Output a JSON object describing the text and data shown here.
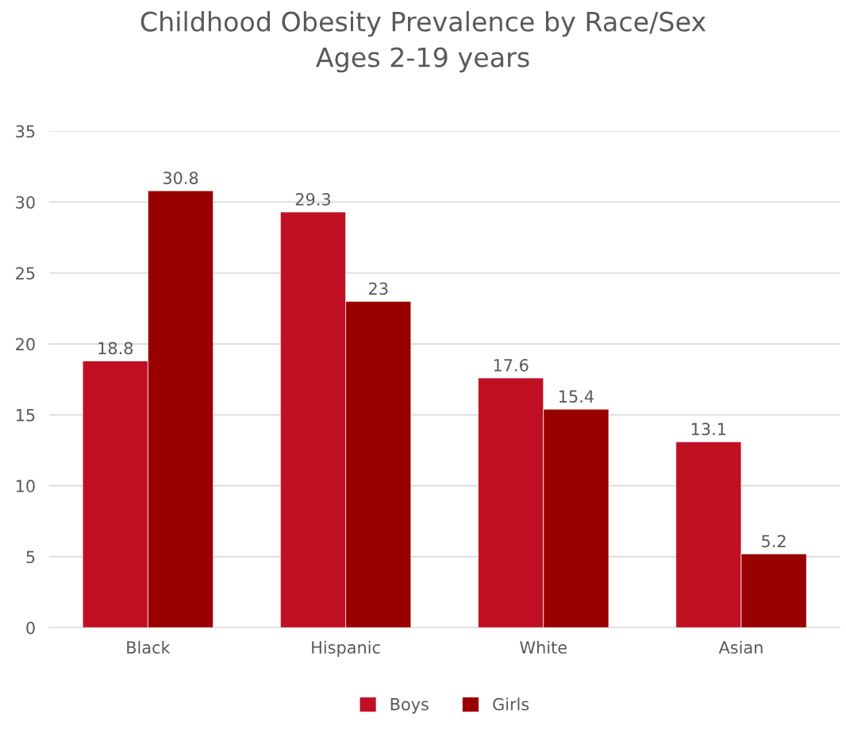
{
  "chart_data": {
    "type": "bar",
    "title": "Childhood Obesity Prevalence by Race/Sex\nAges 2-19 years",
    "categories": [
      "Black",
      "Hispanic",
      "White",
      "Asian"
    ],
    "series": [
      {
        "name": "Boys",
        "color": "#c00f23",
        "values": [
          18.8,
          29.3,
          17.6,
          13.1
        ]
      },
      {
        "name": "Girls",
        "color": "#990000",
        "values": [
          30.8,
          23,
          15.4,
          5.2
        ]
      }
    ],
    "ylim": [
      0,
      35
    ],
    "yticks": [
      0,
      5,
      10,
      15,
      20,
      25,
      30,
      35
    ],
    "grid": "y",
    "legend": "bottom",
    "data_labels": true
  }
}
